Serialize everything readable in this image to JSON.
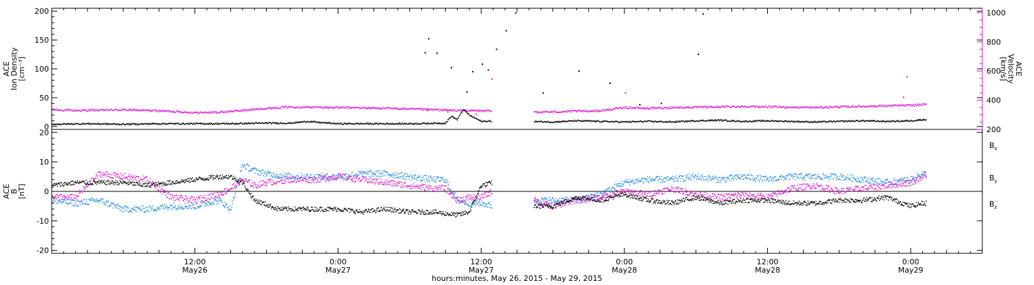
{
  "colors": {
    "black": "#000000",
    "magenta": "#e010d0",
    "blue": "#1e8ce6"
  },
  "chart_data": [
    {
      "type": "scatter",
      "panel": "top",
      "ylabel_lines": [
        "ACE",
        "Ion Density",
        "[cm⁻³]"
      ],
      "ylim": [
        -5,
        205
      ],
      "yticks": [
        0,
        50,
        100,
        150,
        200
      ],
      "y2label_lines": [
        "ACE",
        "Velocity",
        "[km/s]"
      ],
      "y2lim": [
        200,
        1030
      ],
      "y2ticks": [
        200,
        400,
        600,
        800,
        1000
      ],
      "data_gap": [
        36.9,
        40.4
      ],
      "series": [
        {
          "name": "Ion Density",
          "axis": "left",
          "color": "black",
          "points": [
            [
              0,
              4
            ],
            [
              3,
              5
            ],
            [
              6,
              4
            ],
            [
              9,
              5
            ],
            [
              12,
              5
            ],
            [
              15,
              5
            ],
            [
              18,
              6
            ],
            [
              20,
              6
            ],
            [
              21.5,
              9
            ],
            [
              22.5,
              7
            ],
            [
              24,
              5
            ],
            [
              27,
              5
            ],
            [
              30,
              5
            ],
            [
              33,
              6
            ],
            [
              33.5,
              18
            ],
            [
              34,
              12
            ],
            [
              34.5,
              30
            ],
            [
              35,
              20
            ],
            [
              36,
              9
            ],
            [
              38,
              10
            ],
            [
              40,
              9
            ],
            [
              42,
              8
            ],
            [
              44,
              10
            ],
            [
              46,
              9
            ],
            [
              48,
              8
            ],
            [
              50,
              9
            ],
            [
              52,
              8
            ],
            [
              54,
              10
            ],
            [
              56,
              11
            ],
            [
              58,
              9
            ],
            [
              60,
              10
            ],
            [
              62,
              9
            ],
            [
              64,
              8
            ],
            [
              66,
              9
            ],
            [
              68,
              10
            ],
            [
              70,
              9
            ],
            [
              72,
              10
            ],
            [
              73,
              12
            ]
          ],
          "spikes": [
            [
              31.3,
              128
            ],
            [
              31.6,
              152
            ],
            [
              32.3,
              127
            ],
            [
              33.5,
              102
            ],
            [
              34.8,
              60
            ],
            [
              35.3,
              95
            ],
            [
              36.1,
              108
            ],
            [
              36.6,
              98
            ],
            [
              37.3,
              134
            ],
            [
              38.1,
              166
            ],
            [
              38.9,
              197
            ],
            [
              41.2,
              58
            ],
            [
              44.2,
              96
            ],
            [
              46.8,
              75
            ],
            [
              49.3,
              38
            ],
            [
              51.1,
              40
            ],
            [
              54.2,
              125
            ],
            [
              54.6,
              195
            ]
          ]
        },
        {
          "name": "Velocity",
          "axis": "right",
          "color": "magenta",
          "points": [
            [
              0,
              335
            ],
            [
              2,
              330
            ],
            [
              4,
              332
            ],
            [
              6,
              335
            ],
            [
              8,
              330
            ],
            [
              10,
              325
            ],
            [
              12,
              315
            ],
            [
              14,
              318
            ],
            [
              16,
              330
            ],
            [
              18,
              345
            ],
            [
              20,
              355
            ],
            [
              22,
              352
            ],
            [
              24,
              350
            ],
            [
              26,
              348
            ],
            [
              28,
              345
            ],
            [
              30,
              340
            ],
            [
              32,
              335
            ],
            [
              34,
              330
            ],
            [
              36,
              328
            ],
            [
              37,
              325
            ],
            [
              40,
              320
            ],
            [
              42,
              320
            ],
            [
              44,
              325
            ],
            [
              46,
              328
            ],
            [
              48,
              350
            ],
            [
              50,
              345
            ],
            [
              52,
              350
            ],
            [
              54,
              352
            ],
            [
              56,
              355
            ],
            [
              58,
              358
            ],
            [
              60,
              355
            ],
            [
              62,
              352
            ],
            [
              64,
              350
            ],
            [
              66,
              355
            ],
            [
              68,
              358
            ],
            [
              70,
              362
            ],
            [
              72,
              365
            ],
            [
              73,
              370
            ]
          ],
          "spikes": [
            [
              31.5,
              330
            ],
            [
              33.2,
              320
            ],
            [
              35.6,
              305
            ],
            [
              36.9,
              545
            ],
            [
              48.1,
              450
            ],
            [
              71.4,
              420
            ],
            [
              71.7,
              560
            ]
          ]
        }
      ]
    },
    {
      "type": "scatter",
      "panel": "bottom",
      "ylabel_lines": [
        "ACE",
        "B",
        "[nT]"
      ],
      "ylim": [
        -21,
        21
      ],
      "yticks": [
        -20,
        -10,
        0,
        10,
        20
      ],
      "zero_line": true,
      "data_gap": [
        36.9,
        40.4
      ],
      "series": [
        {
          "name": "Bx",
          "label_main": "B",
          "label_sub": "x",
          "color": "black",
          "points": [
            [
              0,
              2
            ],
            [
              2,
              3
            ],
            [
              4,
              3
            ],
            [
              6,
              3
            ],
            [
              8,
              2
            ],
            [
              10,
              3
            ],
            [
              12,
              4
            ],
            [
              14,
              5
            ],
            [
              15,
              5
            ],
            [
              16,
              3
            ],
            [
              17,
              -3
            ],
            [
              19,
              -6
            ],
            [
              22,
              -6
            ],
            [
              24,
              -6
            ],
            [
              26,
              -7
            ],
            [
              28,
              -6
            ],
            [
              30,
              -7
            ],
            [
              32,
              -7
            ],
            [
              34,
              -8
            ],
            [
              35,
              -7
            ],
            [
              36,
              2
            ],
            [
              37,
              3
            ],
            [
              38,
              -3
            ],
            [
              40,
              -5
            ],
            [
              42,
              -5
            ],
            [
              44,
              -2
            ],
            [
              46,
              -3
            ],
            [
              48,
              -1
            ],
            [
              50,
              -3
            ],
            [
              52,
              -4
            ],
            [
              54,
              -2
            ],
            [
              56,
              -4
            ],
            [
              58,
              -3
            ],
            [
              60,
              -3
            ],
            [
              62,
              -4
            ],
            [
              64,
              -4
            ],
            [
              66,
              -3
            ],
            [
              68,
              -3
            ],
            [
              70,
              -2
            ],
            [
              72,
              -5
            ],
            [
              73,
              -4
            ]
          ]
        },
        {
          "name": "By",
          "label_main": "B",
          "label_sub": "y",
          "color": "blue",
          "points": [
            [
              0,
              -3
            ],
            [
              2,
              -4
            ],
            [
              4,
              -3
            ],
            [
              6,
              -6
            ],
            [
              8,
              -6
            ],
            [
              10,
              -5
            ],
            [
              12,
              -5
            ],
            [
              14,
              -3
            ],
            [
              15,
              -6
            ],
            [
              16,
              9
            ],
            [
              17,
              7
            ],
            [
              18,
              6
            ],
            [
              20,
              5
            ],
            [
              22,
              5
            ],
            [
              24,
              5
            ],
            [
              26,
              6
            ],
            [
              28,
              6
            ],
            [
              30,
              5
            ],
            [
              32,
              4
            ],
            [
              33,
              4
            ],
            [
              34,
              -3
            ],
            [
              35,
              -4
            ],
            [
              36,
              -4
            ],
            [
              37,
              -5
            ],
            [
              40,
              -3
            ],
            [
              41,
              -3
            ],
            [
              42,
              -3
            ],
            [
              44,
              -3
            ],
            [
              46,
              -1
            ],
            [
              48,
              3
            ],
            [
              50,
              4
            ],
            [
              52,
              4
            ],
            [
              54,
              5
            ],
            [
              56,
              4
            ],
            [
              58,
              5
            ],
            [
              60,
              4
            ],
            [
              62,
              5
            ],
            [
              64,
              5
            ],
            [
              66,
              5
            ],
            [
              68,
              4
            ],
            [
              70,
              3
            ],
            [
              72,
              4
            ],
            [
              73,
              6
            ]
          ]
        },
        {
          "name": "Bz",
          "label_main": "B",
          "label_sub": "z",
          "color": "magenta",
          "points": [
            [
              0,
              -2
            ],
            [
              2,
              -2
            ],
            [
              4,
              6
            ],
            [
              6,
              5
            ],
            [
              8,
              4
            ],
            [
              10,
              -2
            ],
            [
              12,
              -3
            ],
            [
              14,
              -1
            ],
            [
              15,
              1
            ],
            [
              16,
              4
            ],
            [
              17,
              2
            ],
            [
              18,
              3
            ],
            [
              20,
              4
            ],
            [
              22,
              4
            ],
            [
              24,
              5
            ],
            [
              26,
              4
            ],
            [
              28,
              3
            ],
            [
              30,
              2
            ],
            [
              32,
              1
            ],
            [
              33,
              1
            ],
            [
              34,
              -3
            ],
            [
              35,
              -2
            ],
            [
              36,
              -2
            ],
            [
              37,
              0
            ],
            [
              40,
              -1
            ],
            [
              41,
              -4
            ],
            [
              42,
              -5
            ],
            [
              44,
              -3
            ],
            [
              46,
              -2
            ],
            [
              48,
              0
            ],
            [
              50,
              -1
            ],
            [
              52,
              1
            ],
            [
              54,
              -1
            ],
            [
              56,
              -2
            ],
            [
              58,
              -1
            ],
            [
              60,
              -2
            ],
            [
              62,
              1
            ],
            [
              64,
              2
            ],
            [
              66,
              0
            ],
            [
              68,
              1
            ],
            [
              70,
              2
            ],
            [
              72,
              3
            ],
            [
              73,
              5
            ]
          ]
        }
      ]
    }
  ],
  "x_axis": {
    "xlim_hours": [
      0,
      78
    ],
    "major_ticks": [
      {
        "hours": 12,
        "time": "12:00",
        "date": "May26"
      },
      {
        "hours": 24,
        "time": "0:00",
        "date": "May27"
      },
      {
        "hours": 36,
        "time": "12:00",
        "date": "May27"
      },
      {
        "hours": 48,
        "time": "0:00",
        "date": "May28"
      },
      {
        "hours": 60,
        "time": "12:00",
        "date": "May28"
      },
      {
        "hours": 72,
        "time": "0:00",
        "date": "May29"
      }
    ],
    "title": "hours:minutes, May 26, 2015 - May 29, 2015"
  }
}
